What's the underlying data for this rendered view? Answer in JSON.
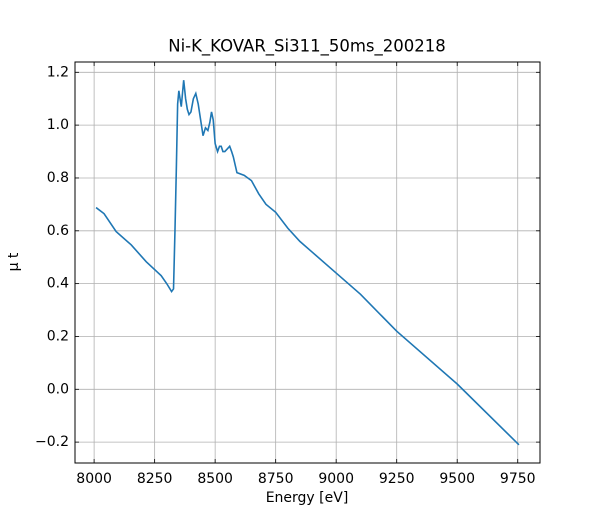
{
  "chart_data": {
    "type": "line",
    "title": "Ni-K_KOVAR_Si311_50ms_200218",
    "x_label": "Energy [eV]",
    "y_label": "μ t",
    "series": [
      {
        "name": "Ni-K_KOVAR_Si311_50ms_200218",
        "color": "#1f77b4",
        "x": [
          8008,
          8041,
          8091,
          8153,
          8215,
          8277,
          8300,
          8320,
          8328,
          8334,
          8340,
          8345,
          8350,
          8355,
          8360,
          8370,
          8378,
          8385,
          8392,
          8400,
          8410,
          8420,
          8430,
          8440,
          8450,
          8460,
          8470,
          8478,
          8485,
          8492,
          8500,
          8510,
          8518,
          8525,
          8532,
          8540,
          8550,
          8560,
          8568,
          8575,
          8590,
          8620,
          8650,
          8680,
          8710,
          8750,
          8800,
          8850,
          8900,
          9000,
          9100,
          9250,
          9500,
          9755
        ],
        "values": [
          0.688,
          0.665,
          0.597,
          0.547,
          0.483,
          0.43,
          0.4,
          0.37,
          0.38,
          0.6,
          0.85,
          1.08,
          1.13,
          1.1,
          1.07,
          1.17,
          1.1,
          1.06,
          1.04,
          1.05,
          1.1,
          1.12,
          1.08,
          1.02,
          0.96,
          0.99,
          0.98,
          1.01,
          1.05,
          1.02,
          0.93,
          0.9,
          0.92,
          0.92,
          0.9,
          0.9,
          0.91,
          0.92,
          0.9,
          0.88,
          0.82,
          0.81,
          0.79,
          0.74,
          0.7,
          0.67,
          0.61,
          0.56,
          0.52,
          0.44,
          0.36,
          0.22,
          0.02,
          -0.21
        ]
      }
    ],
    "xlim": [
      7921,
      9842
    ],
    "ylim": [
      -0.279,
      1.239
    ],
    "xticks": [
      8000,
      8250,
      8500,
      8750,
      9000,
      9250,
      9500,
      9750
    ],
    "yticks": [
      {
        "value": -0.2,
        "label": "−0.2"
      },
      {
        "value": 0,
        "label": "0.0"
      },
      0.2,
      0.4,
      0.6,
      0.8,
      {
        "value": 1,
        "label": "1.0"
      },
      1.2
    ],
    "grid": true
  }
}
